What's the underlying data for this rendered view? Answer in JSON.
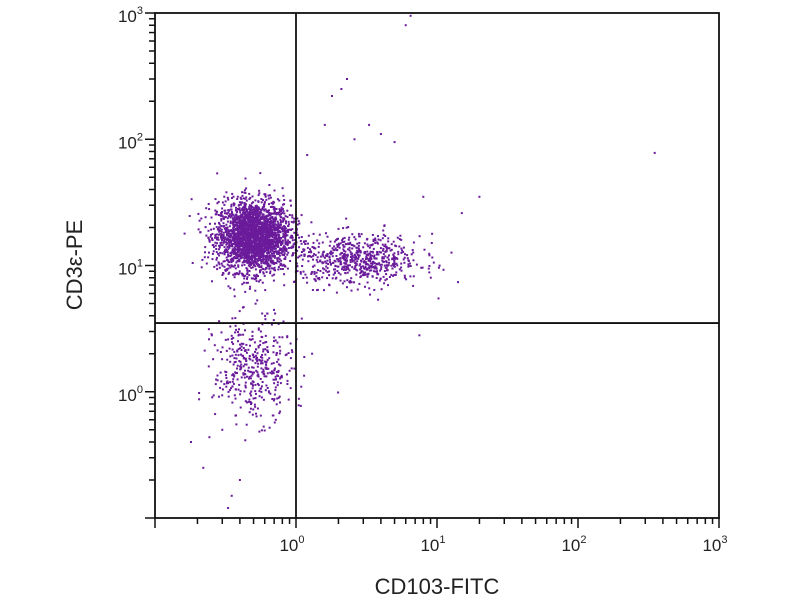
{
  "chart_data": {
    "type": "scatter",
    "subtype": "flow-cytometry-dot-plot",
    "title": "",
    "xlabel": "CD103-FITC",
    "ylabel": "CD3ε-PE",
    "xscale": "log",
    "yscale": "log",
    "xlim": [
      0.1,
      1000
    ],
    "ylim": [
      0.1,
      1000
    ],
    "x_ticks": [
      {
        "base": "10",
        "exp": "0",
        "value": 1
      },
      {
        "base": "10",
        "exp": "1",
        "value": 10
      },
      {
        "base": "10",
        "exp": "2",
        "value": 100
      },
      {
        "base": "10",
        "exp": "3",
        "value": 1000
      }
    ],
    "y_ticks": [
      {
        "base": "10",
        "exp": "0",
        "value": 1
      },
      {
        "base": "10",
        "exp": "1",
        "value": 10
      },
      {
        "base": "10",
        "exp": "2",
        "value": 100
      },
      {
        "base": "10",
        "exp": "3",
        "value": 1000
      }
    ],
    "quadrant_gates": {
      "x": 1.0,
      "y": 3.5
    },
    "point_color": "#6a1b9a",
    "grid": false,
    "populations": [
      {
        "center": [
          0.5,
          17
        ],
        "spread_log": [
          0.13,
          0.14
        ],
        "count": 2600
      },
      {
        "center": [
          2.8,
          11
        ],
        "spread_log": [
          0.22,
          0.1
        ],
        "count": 650
      },
      {
        "center": [
          0.5,
          1.5
        ],
        "spread_log": [
          0.14,
          0.2
        ],
        "count": 420
      }
    ],
    "points": [
      [
        6.5,
        950
      ],
      [
        6.0,
        800
      ],
      [
        2.3,
        300
      ],
      [
        2.1,
        250
      ],
      [
        1.6,
        130
      ],
      [
        1.8,
        220
      ],
      [
        3.3,
        130
      ],
      [
        4.0,
        110
      ],
      [
        5.0,
        95
      ],
      [
        2.6,
        100
      ],
      [
        1.2,
        75
      ],
      [
        350,
        78
      ],
      [
        20,
        35
      ],
      [
        15,
        26
      ],
      [
        8.0,
        35
      ],
      [
        0.3,
        0.5
      ],
      [
        0.22,
        0.25
      ],
      [
        0.33,
        0.12
      ],
      [
        0.4,
        0.2
      ],
      [
        0.18,
        0.4
      ],
      [
        7.5,
        2.8
      ],
      [
        1.3,
        2.0
      ],
      [
        0.35,
        0.15
      ],
      [
        1.1,
        3.8
      ]
    ]
  }
}
